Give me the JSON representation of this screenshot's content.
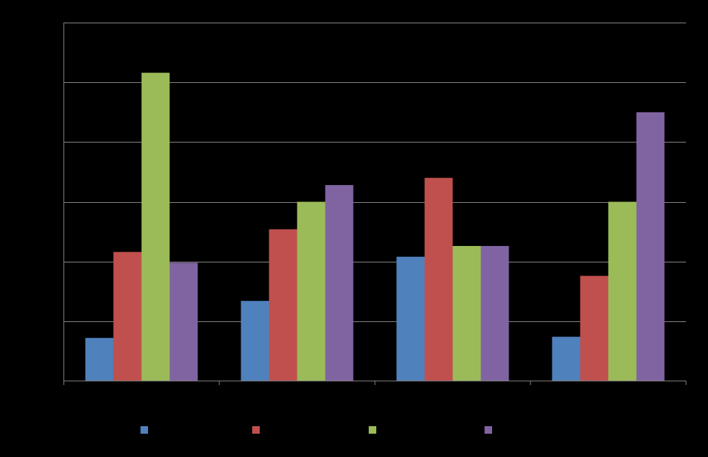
{
  "chart_data": {
    "type": "bar",
    "title": "",
    "xlabel": "",
    "ylabel": "",
    "categories": [
      "",
      "",
      "",
      ""
    ],
    "ylim": [
      0,
      30
    ],
    "y_gridlines": [
      0,
      5,
      10,
      15,
      20,
      25,
      30
    ],
    "grid": true,
    "legend_position": "bottom",
    "series": [
      {
        "color": "#4f81bd",
        "values": [
          3.6,
          6.7,
          10.4,
          3.7
        ]
      },
      {
        "color": "#c0504d",
        "values": [
          10.8,
          12.7,
          17.0,
          8.8
        ]
      },
      {
        "color": "#9bbb59",
        "values": [
          25.8,
          15.0,
          11.3,
          15.0
        ]
      },
      {
        "color": "#8064a2",
        "values": [
          9.9,
          16.4,
          11.3,
          22.5
        ]
      }
    ]
  }
}
